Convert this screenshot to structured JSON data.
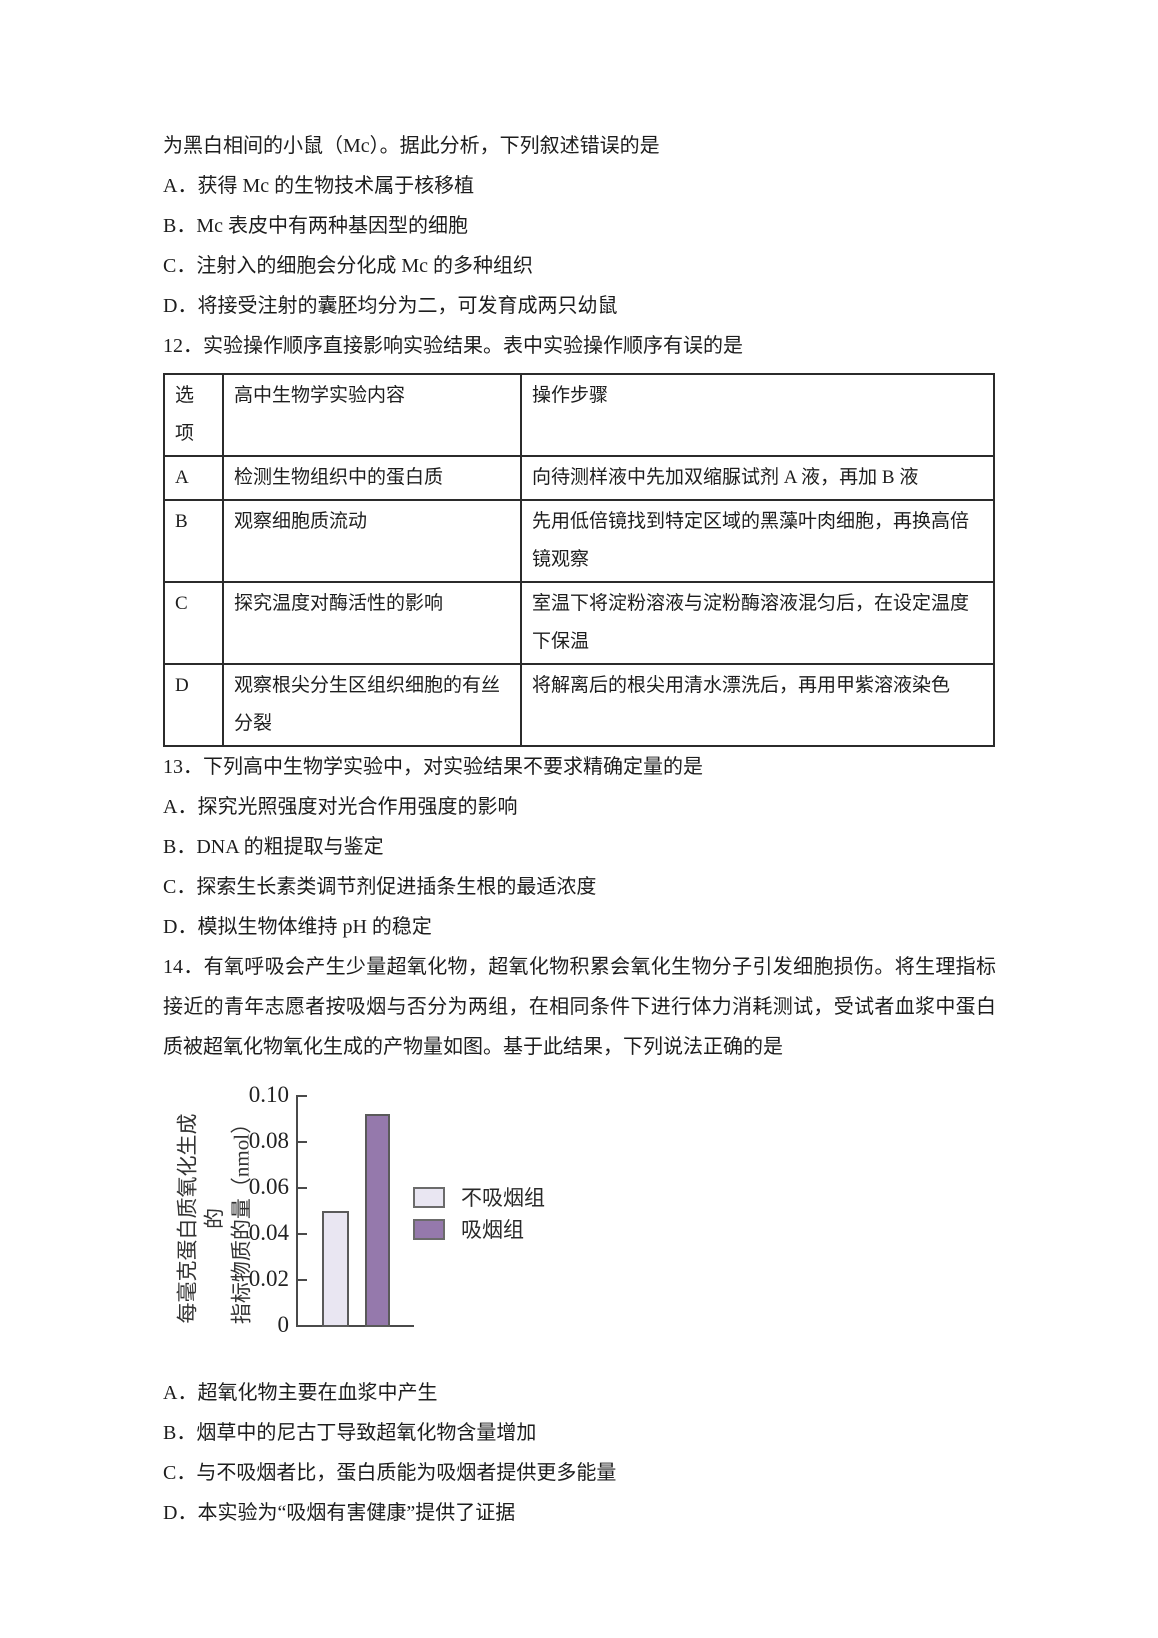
{
  "page": {
    "background": "#ffffff",
    "text_color": "#1d1d1d"
  },
  "q11": {
    "stem_continued": "为黑白相间的小鼠（Mc）。据此分析，下列叙述错误的是",
    "options": [
      "A．获得 Mc 的生物技术属于核移植",
      "B．Mc 表皮中有两种基因型的细胞",
      "C．注射入的细胞会分化成 Mc 的多种组织",
      "D．将接受注射的囊胚均分为二，可发育成两只幼鼠"
    ]
  },
  "q12": {
    "stem": "12．实验操作顺序直接影响实验结果。表中实验操作顺序有误的是",
    "table": {
      "headers": [
        "选项",
        "高中生物学实验内容",
        "操作步骤"
      ],
      "rows": [
        {
          "option": "A",
          "content": "检测生物组织中的蛋白质",
          "steps": "向待测样液中先加双缩脲试剂 A 液，再加 B 液"
        },
        {
          "option": "B",
          "content": "观察细胞质流动",
          "steps": "先用低倍镜找到特定区域的黑藻叶肉细胞，再换高倍镜观察"
        },
        {
          "option": "C",
          "content": "探究温度对酶活性的影响",
          "steps": "室温下将淀粉溶液与淀粉酶溶液混匀后，在设定温度下保温"
        },
        {
          "option": "D",
          "content": "观察根尖分生区组织细胞的有丝分裂",
          "steps": "将解离后的根尖用清水漂洗后，再用甲紫溶液染色"
        }
      ]
    }
  },
  "q13": {
    "stem": "13．下列高中生物学实验中，对实验结果不要求精确定量的是",
    "options": [
      "A．探究光照强度对光合作用强度的影响",
      "B．DNA 的粗提取与鉴定",
      "C．探索生长素类调节剂促进插条生根的最适浓度",
      "D．模拟生物体维持 pH 的稳定"
    ]
  },
  "q14": {
    "stem": "14．有氧呼吸会产生少量超氧化物，超氧化物积累会氧化生物分子引发细胞损伤。将生理指标接近的青年志愿者按吸烟与否分为两组，在相同条件下进行体力消耗测试，受试者血浆中蛋白质被超氧化物氧化生成的产物量如图。基于此结果，下列说法正确的是",
    "options": [
      "A．超氧化物主要在血浆中产生",
      "B．烟草中的尼古丁导致超氧化物含量增加",
      "C．与不吸烟者比，蛋白质能为吸烟者提供更多能量",
      "D．本实验为“吸烟有害健康”提供了证据"
    ]
  },
  "chart_data": {
    "type": "bar",
    "categories": [
      "不吸烟组",
      "吸烟组"
    ],
    "values": [
      0.05,
      0.092
    ],
    "title": "",
    "xlabel": "",
    "ylabel": "每毫克蛋白质氧化生成的指标物质的量（nmol）",
    "ylabel_line1": "每毫克蛋白质氧化生成的",
    "ylabel_line2": "指标物质的量（nmol）",
    "yticks": [
      "0.10",
      "0.08",
      "0.06",
      "0.04",
      "0.02",
      "0"
    ],
    "ylim": [
      0,
      0.1
    ],
    "grid": false,
    "legend_position": "right",
    "legend": [
      {
        "label": "不吸烟组",
        "color": "#e9e6f2"
      },
      {
        "label": "吸烟组",
        "color": "#9579ac"
      }
    ],
    "axis_color": "#4a4a4a",
    "bar_border_color": "#5a5a5a"
  }
}
